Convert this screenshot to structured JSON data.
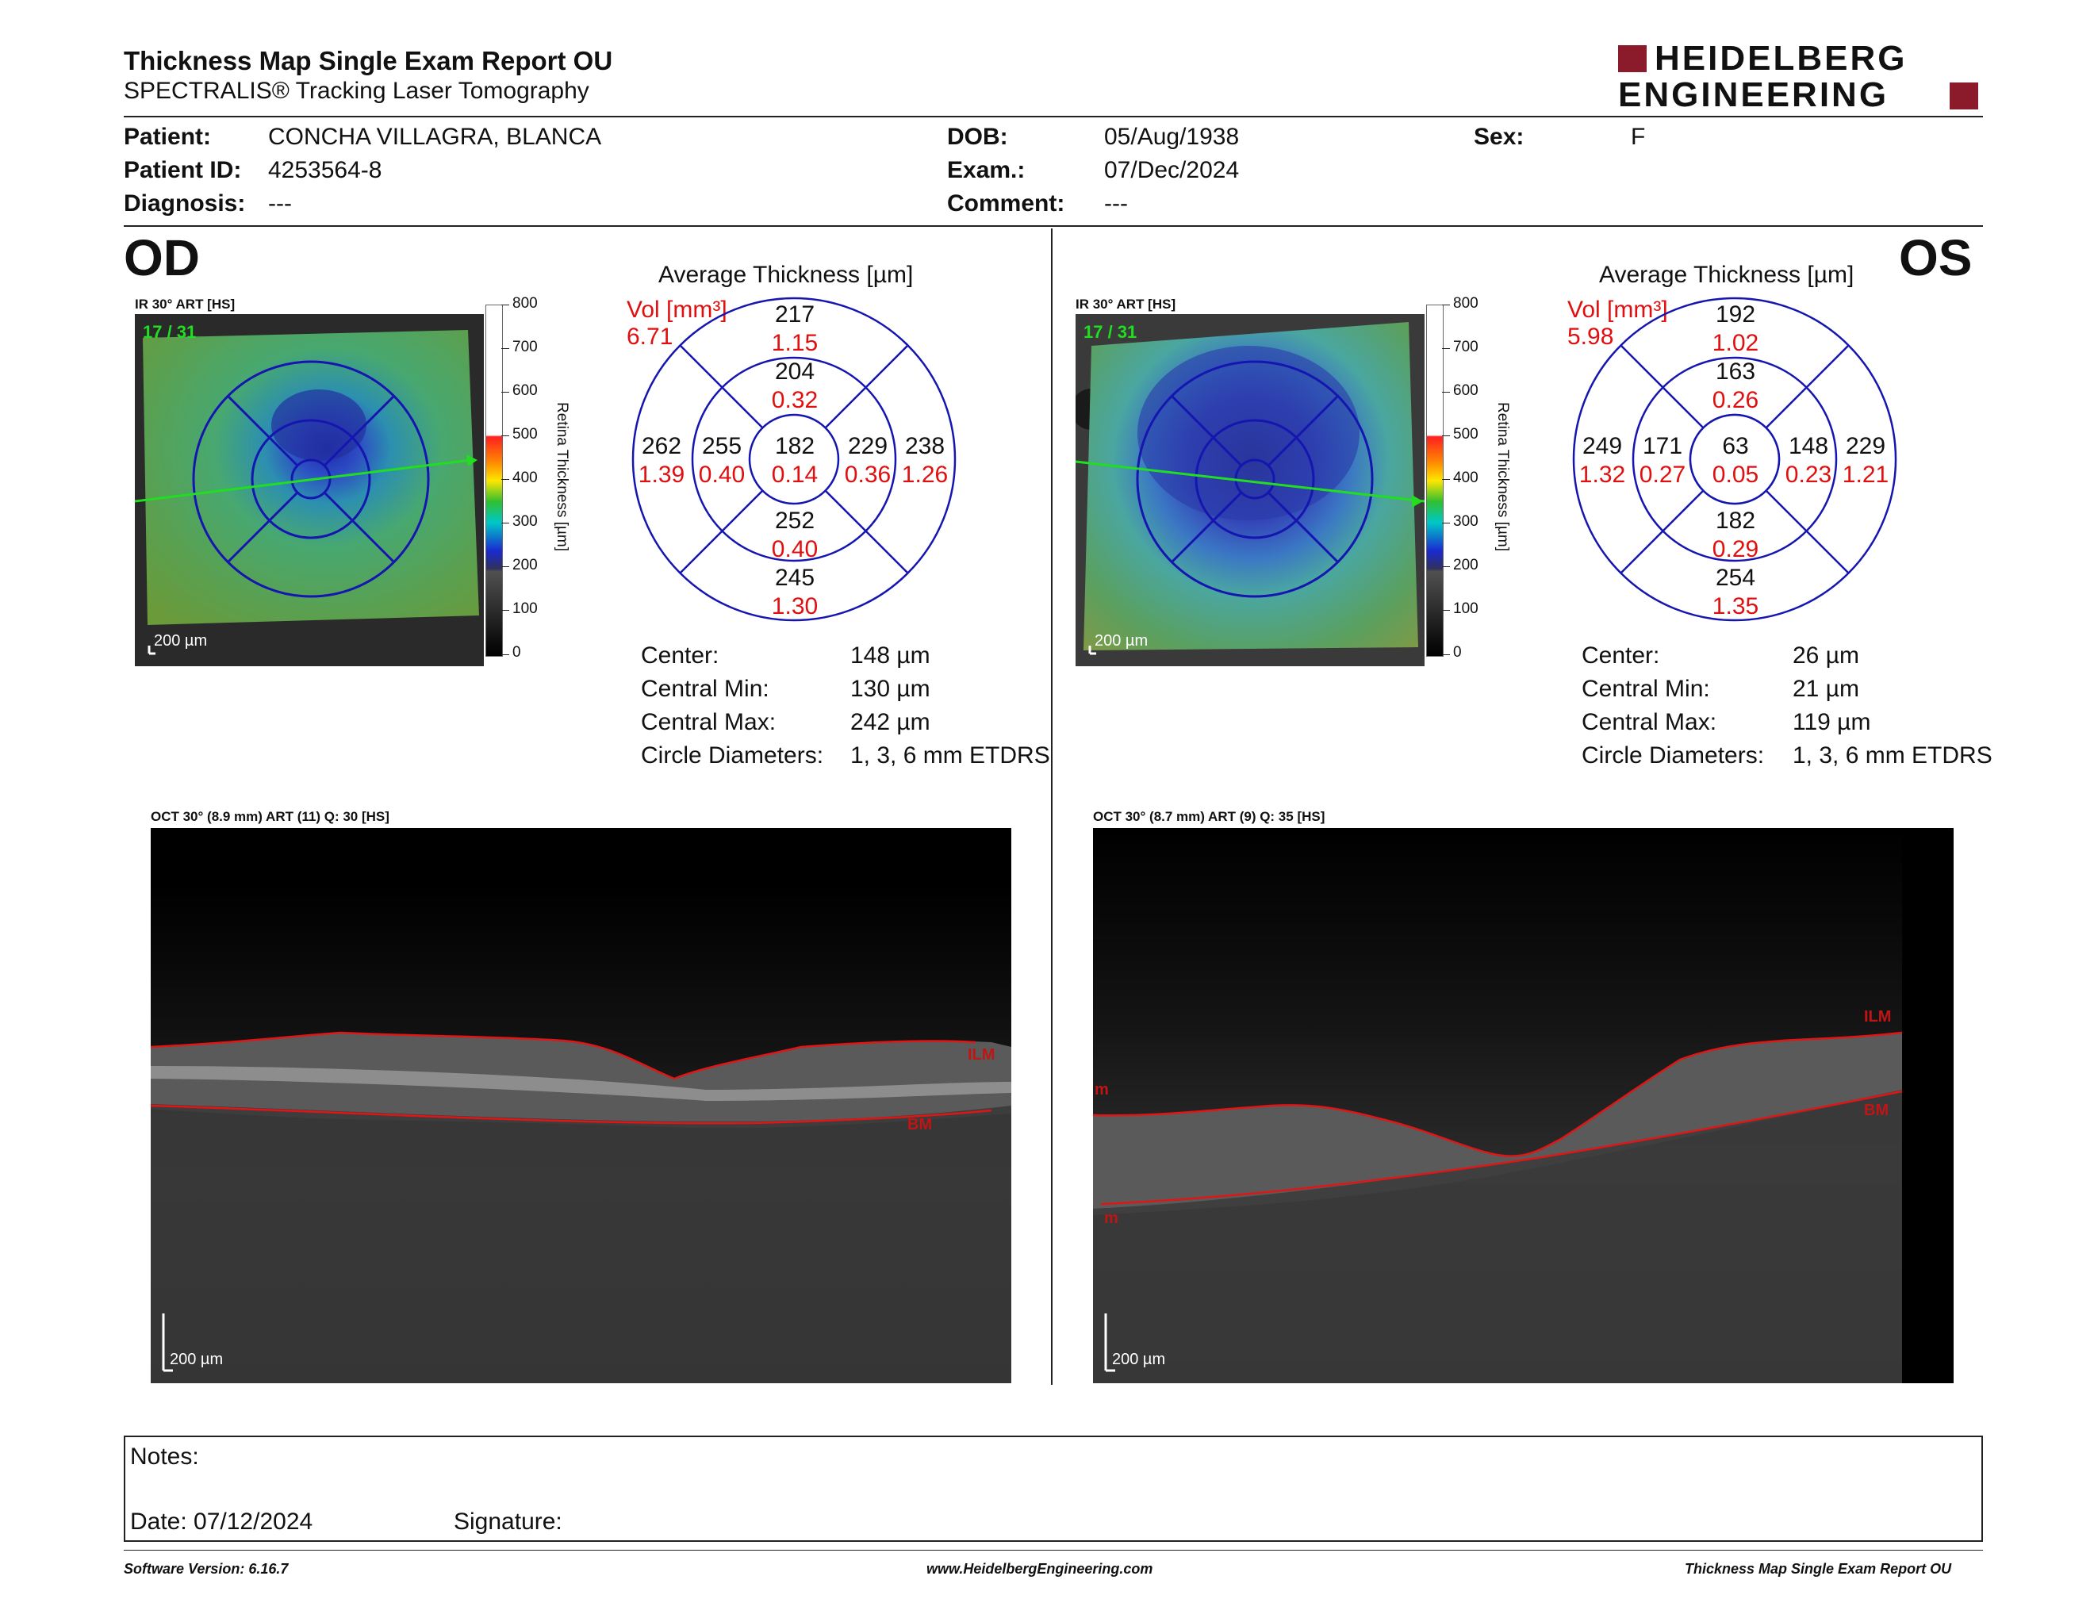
{
  "header": {
    "title": "Thickness Map Single Exam Report OU",
    "subtitle": "SPECTRALIS® Tracking Laser Tomography",
    "logo_line1": "HEIDELBERG",
    "logo_line2": "ENGINEERING"
  },
  "patient": {
    "patient_label": "Patient:",
    "patient_value": "CONCHA VILLAGRA, BLANCA",
    "id_label": "Patient ID:",
    "id_value": "4253564-8",
    "diagnosis_label": "Diagnosis:",
    "diagnosis_value": "---",
    "dob_label": "DOB:",
    "dob_value": "05/Aug/1938",
    "exam_label": "Exam.:",
    "exam_value": "07/Dec/2024",
    "comment_label": "Comment:",
    "comment_value": "---",
    "sex_label": "Sex:",
    "sex_value": "F"
  },
  "scale": {
    "ticks": [
      "800",
      "700",
      "600",
      "500",
      "400",
      "300",
      "200",
      "100",
      "0"
    ],
    "label": "Retina Thickness [µm]"
  },
  "od": {
    "eye": "OD",
    "ir_label": "IR 30° ART [HS]",
    "frame_label": "17 / 31",
    "scale_bar": "200 µm",
    "avg_title": "Average Thickness [µm]",
    "vol_label": "Vol [mm³]",
    "vol_value": "6.71",
    "grid": {
      "center": {
        "t": "182",
        "v": "0.14"
      },
      "inner_sup": {
        "t": "204",
        "v": "0.32"
      },
      "inner_inf": {
        "t": "252",
        "v": "0.40"
      },
      "inner_left": {
        "t": "255",
        "v": "0.40"
      },
      "inner_right": {
        "t": "229",
        "v": "0.36"
      },
      "outer_sup": {
        "t": "217",
        "v": "1.15"
      },
      "outer_inf": {
        "t": "245",
        "v": "1.30"
      },
      "outer_left": {
        "t": "262",
        "v": "1.39"
      },
      "outer_right": {
        "t": "238",
        "v": "1.26"
      }
    },
    "stats": {
      "center_label": "Center:",
      "center_value": "148 µm",
      "min_label": "Central Min:",
      "min_value": "130 µm",
      "max_label": "Central Max:",
      "max_value": "242 µm",
      "diam_label": "Circle Diameters:",
      "diam_value": "1, 3, 6 mm ETDRS"
    },
    "oct_label": "OCT 30° (8.9 mm) ART (11) Q: 30 [HS]",
    "oct_scale": "200 µm",
    "ilm": "ILM",
    "bm": "BM"
  },
  "os": {
    "eye": "OS",
    "ir_label": "IR 30° ART [HS]",
    "frame_label": "17 / 31",
    "scale_bar": "200 µm",
    "avg_title": "Average Thickness [µm]",
    "vol_label": "Vol [mm³]",
    "vol_value": "5.98",
    "grid": {
      "center": {
        "t": "63",
        "v": "0.05"
      },
      "inner_sup": {
        "t": "163",
        "v": "0.26"
      },
      "inner_inf": {
        "t": "182",
        "v": "0.29"
      },
      "inner_left": {
        "t": "171",
        "v": "0.27"
      },
      "inner_right": {
        "t": "148",
        "v": "0.23"
      },
      "outer_sup": {
        "t": "192",
        "v": "1.02"
      },
      "outer_inf": {
        "t": "254",
        "v": "1.35"
      },
      "outer_left": {
        "t": "249",
        "v": "1.32"
      },
      "outer_right": {
        "t": "229",
        "v": "1.21"
      }
    },
    "stats": {
      "center_label": "Center:",
      "center_value": "26 µm",
      "min_label": "Central Min:",
      "min_value": "21 µm",
      "max_label": "Central Max:",
      "max_value": "119 µm",
      "diam_label": "Circle Diameters:",
      "diam_value": "1, 3, 6 mm ETDRS"
    },
    "oct_label": "OCT 30° (8.7 mm) ART (9) Q: 35 [HS]",
    "oct_scale": "200 µm",
    "ilm": "ILM",
    "bm": "BM",
    "edge_mark_top": "m",
    "edge_mark_bottom": "m"
  },
  "notes": {
    "notes_label": "Notes:",
    "date_label": "Date: 07/12/2024",
    "signature_label": "Signature:"
  },
  "footer": {
    "software": "Software Version: 6.16.7",
    "website": "www.HeidelbergEngineering.com",
    "report": "Thickness Map Single Exam Report OU"
  },
  "colors": {
    "accent_red": "#8b1a2a",
    "grid_blue": "#1a1aa8",
    "vol_red": "#e01010",
    "scan_green": "#22dd22"
  }
}
